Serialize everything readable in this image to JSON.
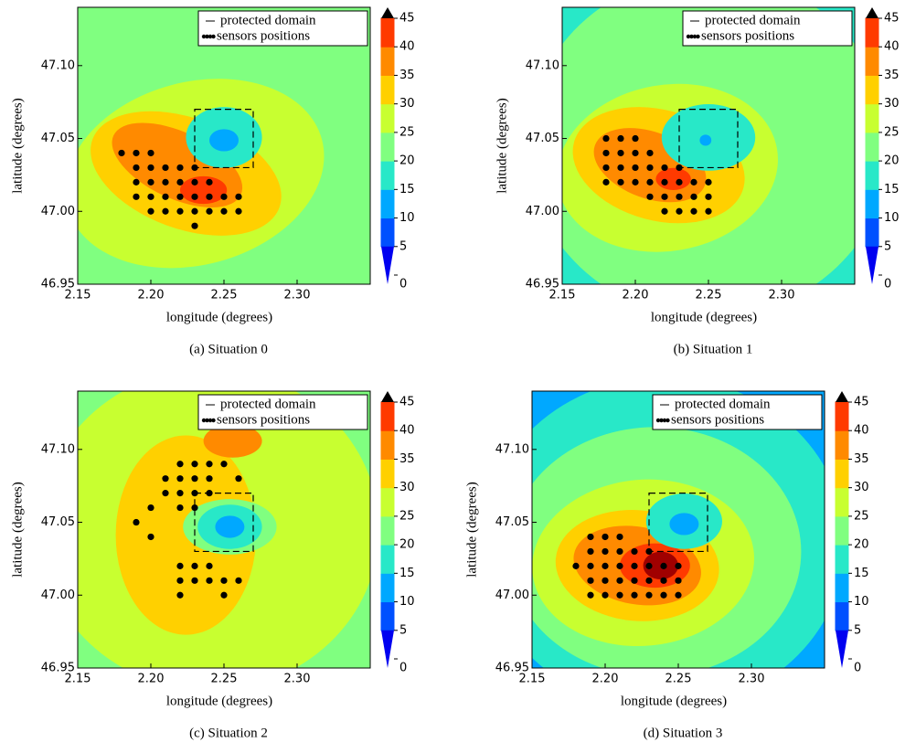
{
  "chart_data": [
    {
      "type": "contour",
      "caption": "(a)  Situation 0",
      "xlabel": "longitude (degrees)",
      "ylabel": "latitude (degrees)",
      "xlim": [
        2.15,
        2.35
      ],
      "ylim": [
        46.95,
        47.14
      ],
      "xticks": [
        2.15,
        {
          "value": 2.2,
          "label": "2.20"
        },
        2.25,
        {
          "value": 2.3,
          "label": "2.30"
        }
      ],
      "yticks": [
        46.95,
        {
          "value": 47,
          "label": "47.00"
        },
        47.05,
        {
          "value": 47.1,
          "label": "47.10"
        }
      ],
      "colorbar": {
        "ticks": [
          0,
          5,
          10,
          15,
          20,
          25,
          30,
          35,
          40,
          45
        ],
        "colors": [
          "#0000f0",
          "#0050ff",
          "#00a8ff",
          "#28e8c8",
          "#80ff80",
          "#c8ff30",
          "#ffd000",
          "#ff8a00",
          "#ff3a00",
          "#a00000"
        ]
      },
      "series": [
        {
          "name": "protected domain",
          "color": "#000000",
          "x": [
            2.23,
            2.27
          ],
          "y": [
            47.03,
            47.07
          ]
        },
        {
          "name": "sensors positions",
          "color": "#000000",
          "x": [
            2.18,
            2.19,
            2.2,
            2.19,
            2.2,
            2.21,
            2.22,
            2.23,
            2.19,
            2.2,
            2.21,
            2.22,
            2.23,
            2.24,
            2.19,
            2.2,
            2.21,
            2.22,
            2.23,
            2.24,
            2.25,
            2.26,
            2.2,
            2.21,
            2.22,
            2.23,
            2.24,
            2.25,
            2.26,
            2.23
          ],
          "y": [
            47.04,
            47.04,
            47.04,
            47.03,
            47.03,
            47.03,
            47.03,
            47.03,
            47.02,
            47.02,
            47.02,
            47.02,
            47.02,
            47.02,
            47.01,
            47.01,
            47.01,
            47.01,
            47.01,
            47.01,
            47.01,
            47.01,
            47,
            47,
            47,
            47,
            47,
            47,
            47,
            46.99
          ]
        }
      ]
    },
    {
      "type": "contour",
      "caption": "(b)  Situation 1",
      "xlabel": "longitude (degrees)",
      "ylabel": "latitude (degrees)",
      "xlim": [
        2.15,
        2.35
      ],
      "ylim": [
        46.95,
        47.14
      ],
      "xticks": [
        2.15,
        {
          "value": 2.2,
          "label": "2.20"
        },
        2.25,
        {
          "value": 2.3,
          "label": "2.30"
        }
      ],
      "yticks": [
        46.95,
        {
          "value": 47,
          "label": "47.00"
        },
        47.05,
        {
          "value": 47.1,
          "label": "47.10"
        }
      ],
      "colorbar": {
        "ticks": [
          0,
          5,
          10,
          15,
          20,
          25,
          30,
          35,
          40,
          45
        ],
        "colors": [
          "#0000f0",
          "#0050ff",
          "#00a8ff",
          "#28e8c8",
          "#80ff80",
          "#c8ff30",
          "#ffd000",
          "#ff8a00",
          "#ff3a00",
          "#a00000"
        ]
      },
      "series": [
        {
          "name": "protected domain",
          "color": "#000000",
          "x": [
            2.23,
            2.27
          ],
          "y": [
            47.03,
            47.07
          ]
        },
        {
          "name": "sensors positions",
          "color": "#000000",
          "x": [
            2.18,
            2.19,
            2.2,
            2.18,
            2.19,
            2.2,
            2.21,
            2.18,
            2.19,
            2.2,
            2.21,
            2.22,
            2.23,
            2.18,
            2.19,
            2.2,
            2.21,
            2.22,
            2.23,
            2.24,
            2.25,
            2.21,
            2.22,
            2.23,
            2.24,
            2.25,
            2.22,
            2.23,
            2.24,
            2.25
          ],
          "y": [
            47.05,
            47.05,
            47.05,
            47.04,
            47.04,
            47.04,
            47.04,
            47.03,
            47.03,
            47.03,
            47.03,
            47.03,
            47.03,
            47.02,
            47.02,
            47.02,
            47.02,
            47.02,
            47.02,
            47.02,
            47.02,
            47.01,
            47.01,
            47.01,
            47.01,
            47.01,
            47,
            47,
            47,
            47
          ]
        }
      ]
    },
    {
      "type": "contour",
      "caption": "(c)  Situation 2",
      "xlabel": "longitude (degrees)",
      "ylabel": "latitude (degrees)",
      "xlim": [
        2.15,
        2.35
      ],
      "ylim": [
        46.95,
        47.14
      ],
      "xticks": [
        2.15,
        {
          "value": 2.2,
          "label": "2.20"
        },
        2.25,
        {
          "value": 2.3,
          "label": "2.30"
        }
      ],
      "yticks": [
        46.95,
        {
          "value": 47,
          "label": "47.00"
        },
        47.05,
        {
          "value": 47.1,
          "label": "47.10"
        }
      ],
      "colorbar": {
        "ticks": [
          0,
          5,
          10,
          15,
          20,
          25,
          30,
          35,
          40,
          45
        ],
        "colors": [
          "#0000f0",
          "#0050ff",
          "#00a8ff",
          "#28e8c8",
          "#80ff80",
          "#c8ff30",
          "#ffd000",
          "#ff8a00",
          "#ff3a00",
          "#a00000"
        ]
      },
      "series": [
        {
          "name": "protected domain",
          "color": "#000000",
          "x": [
            2.23,
            2.27
          ],
          "y": [
            47.03,
            47.07
          ]
        },
        {
          "name": "sensors positions",
          "color": "#000000",
          "x": [
            2.22,
            2.23,
            2.24,
            2.25,
            2.21,
            2.22,
            2.23,
            2.24,
            2.26,
            2.21,
            2.22,
            2.23,
            2.24,
            2.2,
            2.22,
            2.23,
            2.19,
            2.2,
            2.22,
            2.23,
            2.24,
            2.22,
            2.23,
            2.24,
            2.25,
            2.26,
            2.22,
            2.25
          ],
          "y": [
            47.09,
            47.09,
            47.09,
            47.09,
            47.08,
            47.08,
            47.08,
            47.08,
            47.08,
            47.07,
            47.07,
            47.07,
            47.07,
            47.06,
            47.06,
            47.06,
            47.05,
            47.04,
            47.02,
            47.02,
            47.02,
            47.01,
            47.01,
            47.01,
            47.01,
            47.01,
            47,
            47
          ]
        }
      ]
    },
    {
      "type": "contour",
      "caption": "(d)  Situation 3",
      "xlabel": "longitude (degrees)",
      "ylabel": "latitude (degrees)",
      "xlim": [
        2.15,
        2.35
      ],
      "ylim": [
        46.95,
        47.14
      ],
      "xticks": [
        2.15,
        {
          "value": 2.2,
          "label": "2.20"
        },
        2.25,
        {
          "value": 2.3,
          "label": "2.30"
        }
      ],
      "yticks": [
        46.95,
        {
          "value": 47,
          "label": "47.00"
        },
        47.05,
        {
          "value": 47.1,
          "label": "47.10"
        }
      ],
      "colorbar": {
        "ticks": [
          0,
          5,
          10,
          15,
          20,
          25,
          30,
          35,
          40,
          45
        ],
        "colors": [
          "#0000f0",
          "#0050ff",
          "#00a8ff",
          "#28e8c8",
          "#80ff80",
          "#c8ff30",
          "#ffd000",
          "#ff8a00",
          "#ff3a00",
          "#a00000"
        ]
      },
      "series": [
        {
          "name": "protected domain",
          "color": "#000000",
          "x": [
            2.23,
            2.27
          ],
          "y": [
            47.03,
            47.07
          ]
        },
        {
          "name": "sensors positions",
          "color": "#000000",
          "x": [
            2.19,
            2.2,
            2.21,
            2.19,
            2.2,
            2.21,
            2.22,
            2.23,
            2.18,
            2.19,
            2.2,
            2.21,
            2.22,
            2.23,
            2.24,
            2.25,
            2.19,
            2.2,
            2.21,
            2.22,
            2.23,
            2.24,
            2.25,
            2.19,
            2.2,
            2.21,
            2.22,
            2.23,
            2.24,
            2.25
          ],
          "y": [
            47.04,
            47.04,
            47.04,
            47.03,
            47.03,
            47.03,
            47.03,
            47.03,
            47.02,
            47.02,
            47.02,
            47.02,
            47.02,
            47.02,
            47.02,
            47.02,
            47.01,
            47.01,
            47.01,
            47.01,
            47.01,
            47.01,
            47.01,
            47,
            47,
            47,
            47,
            47,
            47,
            47
          ]
        }
      ]
    }
  ]
}
